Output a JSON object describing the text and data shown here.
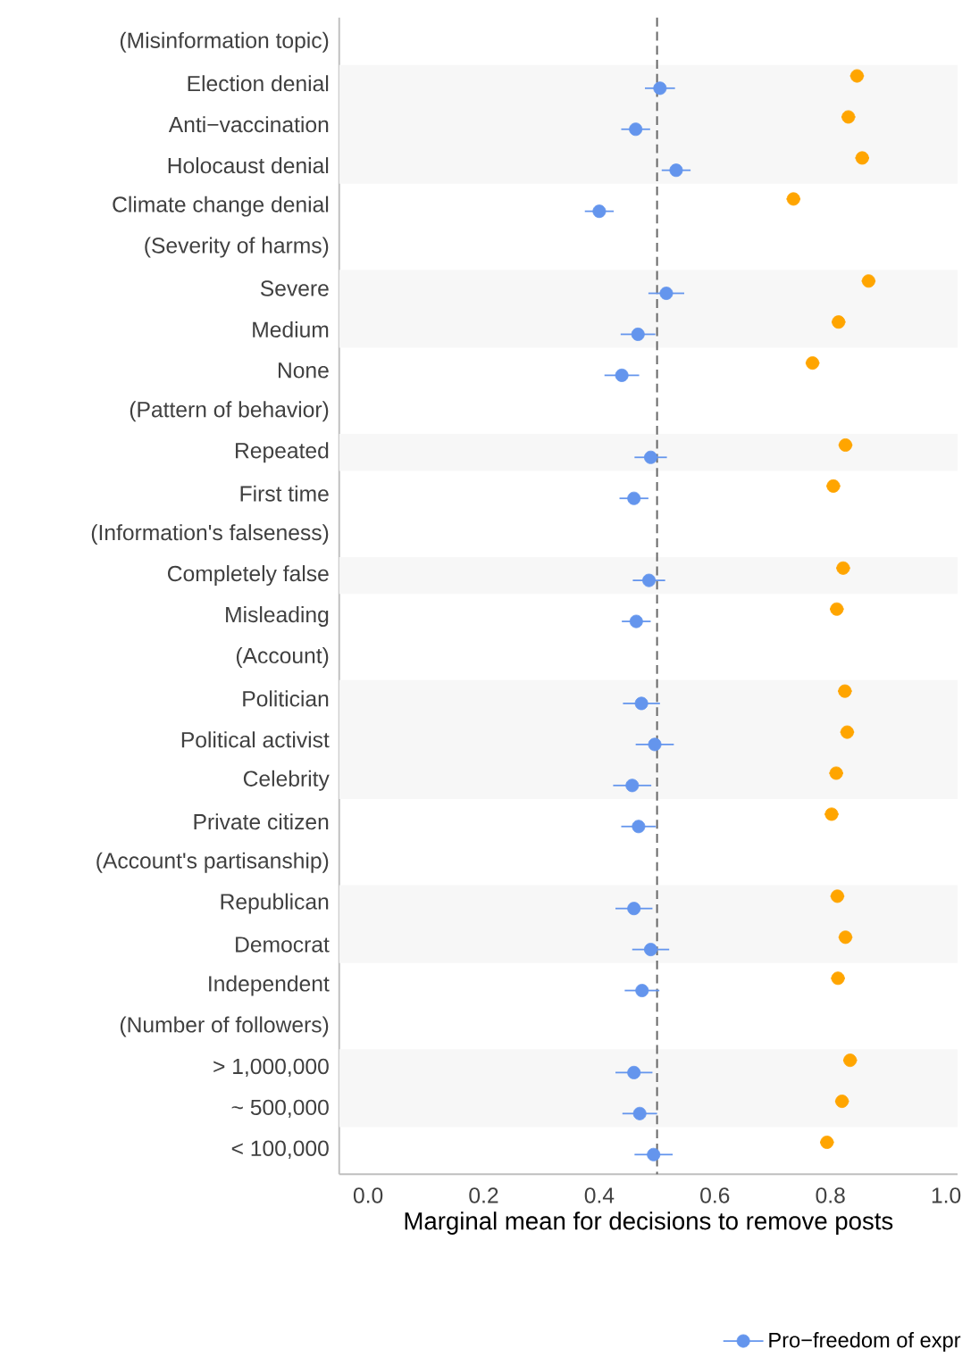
{
  "chart_data": {
    "type": "scatter",
    "orientation": "horizontal",
    "xlabel": "Marginal mean for decisions to remove posts",
    "categories": [
      "(Misinformation topic)",
      "Election denial",
      "Anti−vaccination",
      "Holocaust denial",
      "Climate change denial",
      "(Severity of harms)",
      "Severe",
      "Medium",
      "None",
      "(Pattern of behavior)",
      "Repeated",
      "First time",
      "(Information's falseness)",
      "Completely false",
      "Misleading",
      "(Account)",
      "Politician",
      "Political activist",
      "Celebrity",
      "Private citizen",
      "(Account's partisanship)",
      "Republican",
      "Democrat",
      "Independent",
      "(Number of followers)",
      "> 1,000,000",
      "~ 500,000",
      "< 100,000"
    ],
    "series": [
      {
        "name": "Pro−freedom of expr",
        "color": "#6495ed",
        "values": [
          null,
          0.505,
          0.463,
          0.533,
          0.4,
          null,
          0.516,
          0.467,
          0.439,
          null,
          0.489,
          0.46,
          null,
          0.486,
          0.464,
          null,
          0.473,
          0.496,
          0.457,
          0.468,
          null,
          0.46,
          0.489,
          0.474,
          null,
          0.46,
          0.47,
          0.494
        ],
        "errors": [
          null,
          0.026,
          0.025,
          0.025,
          0.025,
          null,
          0.031,
          0.03,
          0.03,
          null,
          0.028,
          0.025,
          null,
          0.028,
          0.025,
          null,
          0.032,
          0.033,
          0.033,
          0.03,
          null,
          0.032,
          0.032,
          0.03,
          null,
          0.032,
          0.03,
          0.033
        ]
      },
      {
        "color": "#ffa500",
        "values": [
          null,
          0.846,
          0.831,
          0.855,
          0.736,
          null,
          0.866,
          0.814,
          0.769,
          null,
          0.826,
          0.805,
          null,
          0.822,
          0.811,
          null,
          0.825,
          0.829,
          0.81,
          0.802,
          null,
          0.812,
          0.826,
          0.813,
          null,
          0.834,
          0.82,
          0.794
        ],
        "errors": [
          null,
          0.012,
          0.012,
          0.012,
          0.012,
          null,
          0.012,
          0.012,
          0.012,
          null,
          0.012,
          0.012,
          null,
          0.012,
          0.012,
          null,
          0.012,
          0.012,
          0.012,
          0.012,
          null,
          0.012,
          0.012,
          0.012,
          null,
          0.012,
          0.012,
          0.012
        ]
      }
    ],
    "xlim": [
      -0.05,
      1.02
    ],
    "xticks": [
      {
        "value": 0,
        "label": "0.0"
      },
      0.2,
      0.4,
      0.6,
      0.8,
      {
        "value": 1,
        "label": "1.0"
      }
    ],
    "ref_lines": [
      {
        "axis": "x",
        "value": 0.5,
        "color": "#666666",
        "line_style": "dashed"
      }
    ],
    "bands": [
      {
        "axis": "y",
        "from": "Election denial",
        "to": "Holocaust denial",
        "color": "#f7f7f7"
      },
      {
        "axis": "y",
        "from": "Severe",
        "to": "Medium",
        "color": "#f7f7f7"
      },
      {
        "axis": "y",
        "from": "Repeated",
        "to": "Repeated",
        "color": "#f7f7f7"
      },
      {
        "axis": "y",
        "from": "Completely false",
        "to": "Completely false",
        "color": "#f7f7f7"
      },
      {
        "axis": "y",
        "from": "Politician",
        "to": "Celebrity",
        "color": "#f7f7f7"
      },
      {
        "axis": "y",
        "from": "Republican",
        "to": "Democrat",
        "color": "#f7f7f7"
      },
      {
        "axis": "y",
        "from": "> 1,000,000",
        "to": "~ 500,000",
        "color": "#f7f7f7"
      }
    ],
    "marker": "circle",
    "legend": "bottom"
  }
}
